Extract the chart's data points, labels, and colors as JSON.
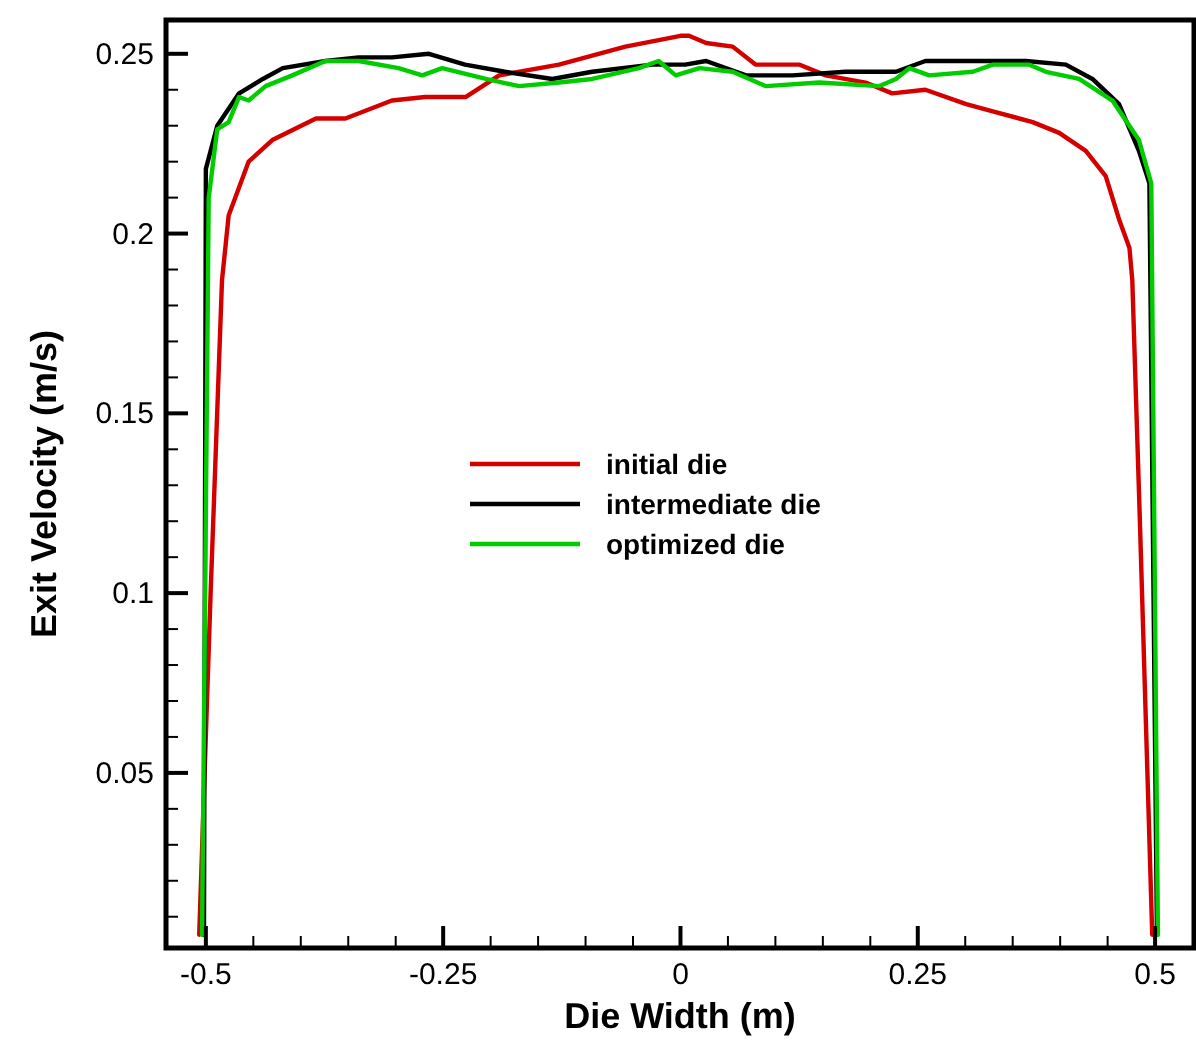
{
  "chart_data": {
    "type": "line",
    "xlabel": "Die Width (m)",
    "ylabel": "Exit Velocity (m/s)",
    "xlim": [
      -0.542,
      0.541
    ],
    "ylim": [
      0.0013,
      0.2594
    ],
    "xticks": [
      -0.5,
      {
        "value": -0.45,
        "label": null
      },
      {
        "value": -0.4,
        "label": null
      },
      {
        "value": -0.35,
        "label": null
      },
      {
        "value": -0.3,
        "label": null
      },
      -0.25,
      {
        "value": -0.2,
        "label": null
      },
      {
        "value": -0.15,
        "label": null
      },
      {
        "value": -0.1,
        "label": null
      },
      {
        "value": -0.05,
        "label": null
      },
      0,
      {
        "value": 0.05,
        "label": null
      },
      {
        "value": 0.1,
        "label": null
      },
      {
        "value": 0.15,
        "label": null
      },
      {
        "value": 0.2,
        "label": null
      },
      0.25,
      {
        "value": 0.3,
        "label": null
      },
      {
        "value": 0.35,
        "label": null
      },
      {
        "value": 0.4,
        "label": null
      },
      {
        "value": 0.45,
        "label": null
      },
      0.5
    ],
    "yticks": [
      {
        "value": 0.01,
        "label": null
      },
      {
        "value": 0.02,
        "label": null
      },
      {
        "value": 0.03,
        "label": null
      },
      {
        "value": 0.04,
        "label": null
      },
      0.05,
      {
        "value": 0.06,
        "label": null
      },
      {
        "value": 0.07,
        "label": null
      },
      {
        "value": 0.08,
        "label": null
      },
      {
        "value": 0.09,
        "label": null
      },
      0.1,
      {
        "value": 0.11,
        "label": null
      },
      {
        "value": 0.12,
        "label": null
      },
      {
        "value": 0.13,
        "label": null
      },
      {
        "value": 0.14,
        "label": null
      },
      0.15,
      {
        "value": 0.16,
        "label": null
      },
      {
        "value": 0.17,
        "label": null
      },
      {
        "value": 0.18,
        "label": null
      },
      {
        "value": 0.19,
        "label": null
      },
      0.2,
      {
        "value": 0.21,
        "label": null
      },
      {
        "value": 0.22,
        "label": null
      },
      {
        "value": 0.23,
        "label": null
      },
      {
        "value": 0.24,
        "label": null
      },
      0.25
    ],
    "grid": false,
    "legend": "center",
    "marker": "none",
    "line_style": "solid",
    "series": [
      {
        "name": "initial die",
        "color": "#d40000",
        "x": [
          -0.507,
          -0.495,
          -0.483,
          -0.476,
          -0.455,
          -0.43,
          -0.384,
          -0.353,
          -0.304,
          -0.269,
          -0.226,
          -0.191,
          -0.128,
          -0.058,
          0,
          0.009,
          0.027,
          0.055,
          0.079,
          0.125,
          0.153,
          0.195,
          0.223,
          0.258,
          0.301,
          0.329,
          0.371,
          0.399,
          0.427,
          0.448,
          0.462,
          0.473,
          0.476,
          0.484,
          0.497
        ],
        "values": [
          0.005,
          0.1,
          0.187,
          0.205,
          0.22,
          0.226,
          0.232,
          0.232,
          0.237,
          0.238,
          0.238,
          0.244,
          0.247,
          0.252,
          0.255,
          0.255,
          0.253,
          0.252,
          0.247,
          0.247,
          0.244,
          0.242,
          0.239,
          0.24,
          0.236,
          0.234,
          0.231,
          0.228,
          0.223,
          0.216,
          0.204,
          0.196,
          0.187,
          0.12,
          0.005
        ]
      },
      {
        "name": "intermediate die",
        "color": "#000000",
        "x": [
          -0.502,
          -0.5,
          -0.488,
          -0.465,
          -0.44,
          -0.419,
          -0.374,
          -0.339,
          -0.304,
          -0.265,
          -0.227,
          -0.185,
          -0.135,
          -0.093,
          -0.03,
          0.005,
          0.027,
          0.069,
          0.118,
          0.174,
          0.227,
          0.258,
          0.315,
          0.364,
          0.406,
          0.434,
          0.462,
          0.483,
          0.494,
          0.502
        ],
        "values": [
          0.005,
          0.218,
          0.23,
          0.239,
          0.243,
          0.246,
          0.248,
          0.249,
          0.249,
          0.25,
          0.247,
          0.245,
          0.243,
          0.245,
          0.247,
          0.247,
          0.248,
          0.244,
          0.244,
          0.245,
          0.245,
          0.248,
          0.248,
          0.248,
          0.247,
          0.243,
          0.236,
          0.223,
          0.214,
          0.005
        ]
      },
      {
        "name": "optimized die",
        "color": "#00cc00",
        "x": [
          -0.504,
          -0.497,
          -0.488,
          -0.476,
          -0.465,
          -0.455,
          -0.437,
          -0.409,
          -0.374,
          -0.339,
          -0.297,
          -0.272,
          -0.251,
          -0.205,
          -0.17,
          -0.128,
          -0.093,
          -0.044,
          -0.023,
          -0.005,
          0.02,
          0.055,
          0.09,
          0.146,
          0.209,
          0.227,
          0.241,
          0.262,
          0.308,
          0.329,
          0.367,
          0.385,
          0.42,
          0.455,
          0.483,
          0.496,
          0.503
        ],
        "values": [
          0.005,
          0.21,
          0.229,
          0.231,
          0.238,
          0.237,
          0.241,
          0.244,
          0.248,
          0.248,
          0.246,
          0.244,
          0.246,
          0.243,
          0.241,
          0.242,
          0.243,
          0.246,
          0.248,
          0.244,
          0.246,
          0.245,
          0.241,
          0.242,
          0.241,
          0.243,
          0.246,
          0.244,
          0.245,
          0.247,
          0.247,
          0.245,
          0.243,
          0.237,
          0.226,
          0.214,
          0.005
        ]
      }
    ]
  }
}
